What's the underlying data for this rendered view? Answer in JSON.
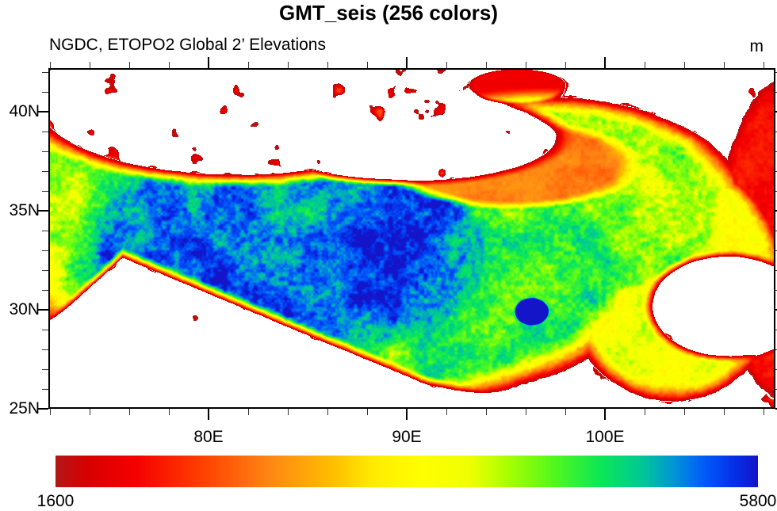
{
  "title": "GMT_seis (256 colors)",
  "subtitle": "NGDC, ETOPO2 Global 2’ Elevations",
  "units_label": "m",
  "map": {
    "region": "Tibetan Plateau elevations",
    "lon_min": 71.92,
    "lon_max": 108.6,
    "lat_min": 25.0,
    "lat_max": 42.2,
    "x_axis": {
      "major_ticks": [
        {
          "lon": 80,
          "label": "80E"
        },
        {
          "lon": 90,
          "label": "90E"
        },
        {
          "lon": 100,
          "label": "100E"
        }
      ],
      "minor_step_deg": 2
    },
    "y_axis": {
      "major_ticks": [
        {
          "lat": 25,
          "label": "25N"
        },
        {
          "lat": 30,
          "label": "30N"
        },
        {
          "lat": 35,
          "label": "35N"
        },
        {
          "lat": 40,
          "label": "40N"
        }
      ],
      "minor_step_deg": 1
    }
  },
  "colorbar": {
    "min_value": 1600,
    "max_value": 5800,
    "min_label": "1600",
    "max_label": "5800",
    "units": "m",
    "colormap_name": "GMT_seis reversed (256 colors)",
    "below_min_color": "#FFFFFF",
    "stops": [
      {
        "t": 0.0,
        "color": "#B21818"
      },
      {
        "t": 0.045,
        "color": "#D70000"
      },
      {
        "t": 0.113,
        "color": "#F50000"
      },
      {
        "t": 0.203,
        "color": "#FF3C00"
      },
      {
        "t": 0.305,
        "color": "#FF8714"
      },
      {
        "t": 0.395,
        "color": "#FFBE00"
      },
      {
        "t": 0.451,
        "color": "#FFEB00"
      },
      {
        "t": 0.52,
        "color": "#FFFF00"
      },
      {
        "t": 0.59,
        "color": "#F0FF00"
      },
      {
        "t": 0.643,
        "color": "#AAFF00"
      },
      {
        "t": 0.711,
        "color": "#50F81E"
      },
      {
        "t": 0.779,
        "color": "#0AE65A"
      },
      {
        "t": 0.835,
        "color": "#00C896"
      },
      {
        "t": 0.88,
        "color": "#0096D7"
      },
      {
        "t": 0.925,
        "color": "#005AFA"
      },
      {
        "t": 0.97,
        "color": "#052DE6"
      },
      {
        "t": 1.0,
        "color": "#1414C8"
      }
    ]
  },
  "frame_color": "#000000",
  "text_color": "#000000"
}
